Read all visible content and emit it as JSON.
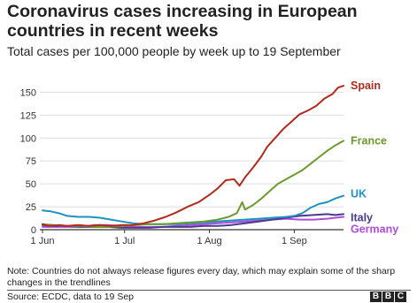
{
  "chart_data": {
    "type": "line",
    "title": "Coronavirus cases increasing in European countries in recent weeks",
    "subtitle": "Total cases per 100,000 people by week up to 19 September",
    "xlabel": "",
    "ylabel": "",
    "x_range": [
      "2020-06-01",
      "2020-09-19"
    ],
    "ylim": [
      0,
      160
    ],
    "y_ticks": [
      0,
      25,
      50,
      75,
      100,
      125,
      150
    ],
    "x_ticks": [
      {
        "date": "2020-06-01",
        "label": "1 Jun"
      },
      {
        "date": "2020-07-01",
        "label": "1 Jul"
      },
      {
        "date": "2020-08-01",
        "label": "1 Aug"
      },
      {
        "date": "2020-09-01",
        "label": "1 Sep"
      }
    ],
    "grid": "horizontal",
    "legend": "direct labels at line ends",
    "series": [
      {
        "name": "Spain",
        "color": "#b22a1b",
        "points": [
          [
            "2020-06-01",
            6
          ],
          [
            "2020-06-03",
            4
          ],
          [
            "2020-06-07",
            5
          ],
          [
            "2020-06-10",
            4
          ],
          [
            "2020-06-14",
            5
          ],
          [
            "2020-06-18",
            4
          ],
          [
            "2020-06-22",
            5
          ],
          [
            "2020-06-26",
            4
          ],
          [
            "2020-06-30",
            5
          ],
          [
            "2020-07-04",
            5
          ],
          [
            "2020-07-08",
            7
          ],
          [
            "2020-07-12",
            10
          ],
          [
            "2020-07-16",
            14
          ],
          [
            "2020-07-20",
            19
          ],
          [
            "2020-07-24",
            25
          ],
          [
            "2020-07-28",
            30
          ],
          [
            "2020-08-01",
            38
          ],
          [
            "2020-08-04",
            45
          ],
          [
            "2020-08-07",
            54
          ],
          [
            "2020-08-10",
            55
          ],
          [
            "2020-08-12",
            48
          ],
          [
            "2020-08-14",
            57
          ],
          [
            "2020-08-17",
            68
          ],
          [
            "2020-08-20",
            80
          ],
          [
            "2020-08-22",
            90
          ],
          [
            "2020-08-25",
            100
          ],
          [
            "2020-08-28",
            110
          ],
          [
            "2020-08-31",
            118
          ],
          [
            "2020-09-03",
            126
          ],
          [
            "2020-09-06",
            130
          ],
          [
            "2020-09-09",
            135
          ],
          [
            "2020-09-12",
            143
          ],
          [
            "2020-09-15",
            148
          ],
          [
            "2020-09-17",
            155
          ],
          [
            "2020-09-19",
            157
          ]
        ]
      },
      {
        "name": "France",
        "color": "#6c9a2c",
        "points": [
          [
            "2020-06-01",
            6
          ],
          [
            "2020-06-05",
            5
          ],
          [
            "2020-06-10",
            4
          ],
          [
            "2020-06-15",
            4
          ],
          [
            "2020-06-20",
            3
          ],
          [
            "2020-06-25",
            3
          ],
          [
            "2020-06-30",
            4
          ],
          [
            "2020-07-05",
            5
          ],
          [
            "2020-07-10",
            6
          ],
          [
            "2020-07-15",
            6
          ],
          [
            "2020-07-20",
            7
          ],
          [
            "2020-07-25",
            8
          ],
          [
            "2020-07-30",
            9
          ],
          [
            "2020-08-04",
            11
          ],
          [
            "2020-08-08",
            14
          ],
          [
            "2020-08-11",
            18
          ],
          [
            "2020-08-13",
            30
          ],
          [
            "2020-08-14",
            22
          ],
          [
            "2020-08-17",
            27
          ],
          [
            "2020-08-20",
            34
          ],
          [
            "2020-08-23",
            42
          ],
          [
            "2020-08-26",
            50
          ],
          [
            "2020-08-29",
            55
          ],
          [
            "2020-09-01",
            60
          ],
          [
            "2020-09-04",
            65
          ],
          [
            "2020-09-07",
            72
          ],
          [
            "2020-09-10",
            79
          ],
          [
            "2020-09-13",
            86
          ],
          [
            "2020-09-16",
            92
          ],
          [
            "2020-09-19",
            97
          ]
        ]
      },
      {
        "name": "UK",
        "color": "#1d91c0",
        "points": [
          [
            "2020-06-01",
            21
          ],
          [
            "2020-06-04",
            20
          ],
          [
            "2020-06-07",
            18
          ],
          [
            "2020-06-10",
            15
          ],
          [
            "2020-06-14",
            14
          ],
          [
            "2020-06-18",
            14
          ],
          [
            "2020-06-22",
            13
          ],
          [
            "2020-06-26",
            11
          ],
          [
            "2020-06-30",
            9
          ],
          [
            "2020-07-04",
            7
          ],
          [
            "2020-07-08",
            6
          ],
          [
            "2020-07-12",
            6
          ],
          [
            "2020-07-16",
            6
          ],
          [
            "2020-07-20",
            6
          ],
          [
            "2020-07-25",
            7
          ],
          [
            "2020-07-30",
            8
          ],
          [
            "2020-08-04",
            9
          ],
          [
            "2020-08-09",
            10
          ],
          [
            "2020-08-14",
            11
          ],
          [
            "2020-08-19",
            12
          ],
          [
            "2020-08-24",
            13
          ],
          [
            "2020-08-29",
            14
          ],
          [
            "2020-09-01",
            15
          ],
          [
            "2020-09-04",
            18
          ],
          [
            "2020-09-07",
            24
          ],
          [
            "2020-09-10",
            28
          ],
          [
            "2020-09-13",
            30
          ],
          [
            "2020-09-16",
            34
          ],
          [
            "2020-09-19",
            37
          ]
        ]
      },
      {
        "name": "Italy",
        "color": "#4b3a8c",
        "points": [
          [
            "2020-06-01",
            5
          ],
          [
            "2020-06-05",
            4
          ],
          [
            "2020-06-10",
            4
          ],
          [
            "2020-06-15",
            3
          ],
          [
            "2020-06-20",
            3
          ],
          [
            "2020-06-25",
            3
          ],
          [
            "2020-06-30",
            2
          ],
          [
            "2020-07-05",
            2
          ],
          [
            "2020-07-10",
            2
          ],
          [
            "2020-07-15",
            3
          ],
          [
            "2020-07-20",
            3
          ],
          [
            "2020-07-25",
            3
          ],
          [
            "2020-07-30",
            4
          ],
          [
            "2020-08-04",
            4
          ],
          [
            "2020-08-09",
            5
          ],
          [
            "2020-08-14",
            7
          ],
          [
            "2020-08-19",
            9
          ],
          [
            "2020-08-24",
            11
          ],
          [
            "2020-08-29",
            13
          ],
          [
            "2020-09-03",
            15
          ],
          [
            "2020-09-08",
            16
          ],
          [
            "2020-09-13",
            17
          ],
          [
            "2020-09-16",
            16
          ],
          [
            "2020-09-19",
            17
          ]
        ]
      },
      {
        "name": "Germany",
        "color": "#b04cdd",
        "points": [
          [
            "2020-06-01",
            3
          ],
          [
            "2020-06-05",
            3
          ],
          [
            "2020-06-10",
            3
          ],
          [
            "2020-06-15",
            3
          ],
          [
            "2020-06-20",
            5
          ],
          [
            "2020-06-25",
            5
          ],
          [
            "2020-06-30",
            4
          ],
          [
            "2020-07-05",
            3
          ],
          [
            "2020-07-10",
            3
          ],
          [
            "2020-07-15",
            3
          ],
          [
            "2020-07-20",
            4
          ],
          [
            "2020-07-25",
            5
          ],
          [
            "2020-07-30",
            6
          ],
          [
            "2020-08-04",
            7
          ],
          [
            "2020-08-09",
            8
          ],
          [
            "2020-08-14",
            9
          ],
          [
            "2020-08-19",
            10
          ],
          [
            "2020-08-24",
            11
          ],
          [
            "2020-08-29",
            12
          ],
          [
            "2020-09-03",
            11
          ],
          [
            "2020-09-08",
            11
          ],
          [
            "2020-09-13",
            12
          ],
          [
            "2020-09-16",
            13
          ],
          [
            "2020-09-19",
            14
          ]
        ]
      }
    ]
  },
  "note": "Note: Countries do not always release figures every day, which may explain some of the sharp changes in the trendlines",
  "source": "Source: ECDC, data to 19 Sep",
  "logo_letters": [
    "B",
    "B",
    "C"
  ]
}
